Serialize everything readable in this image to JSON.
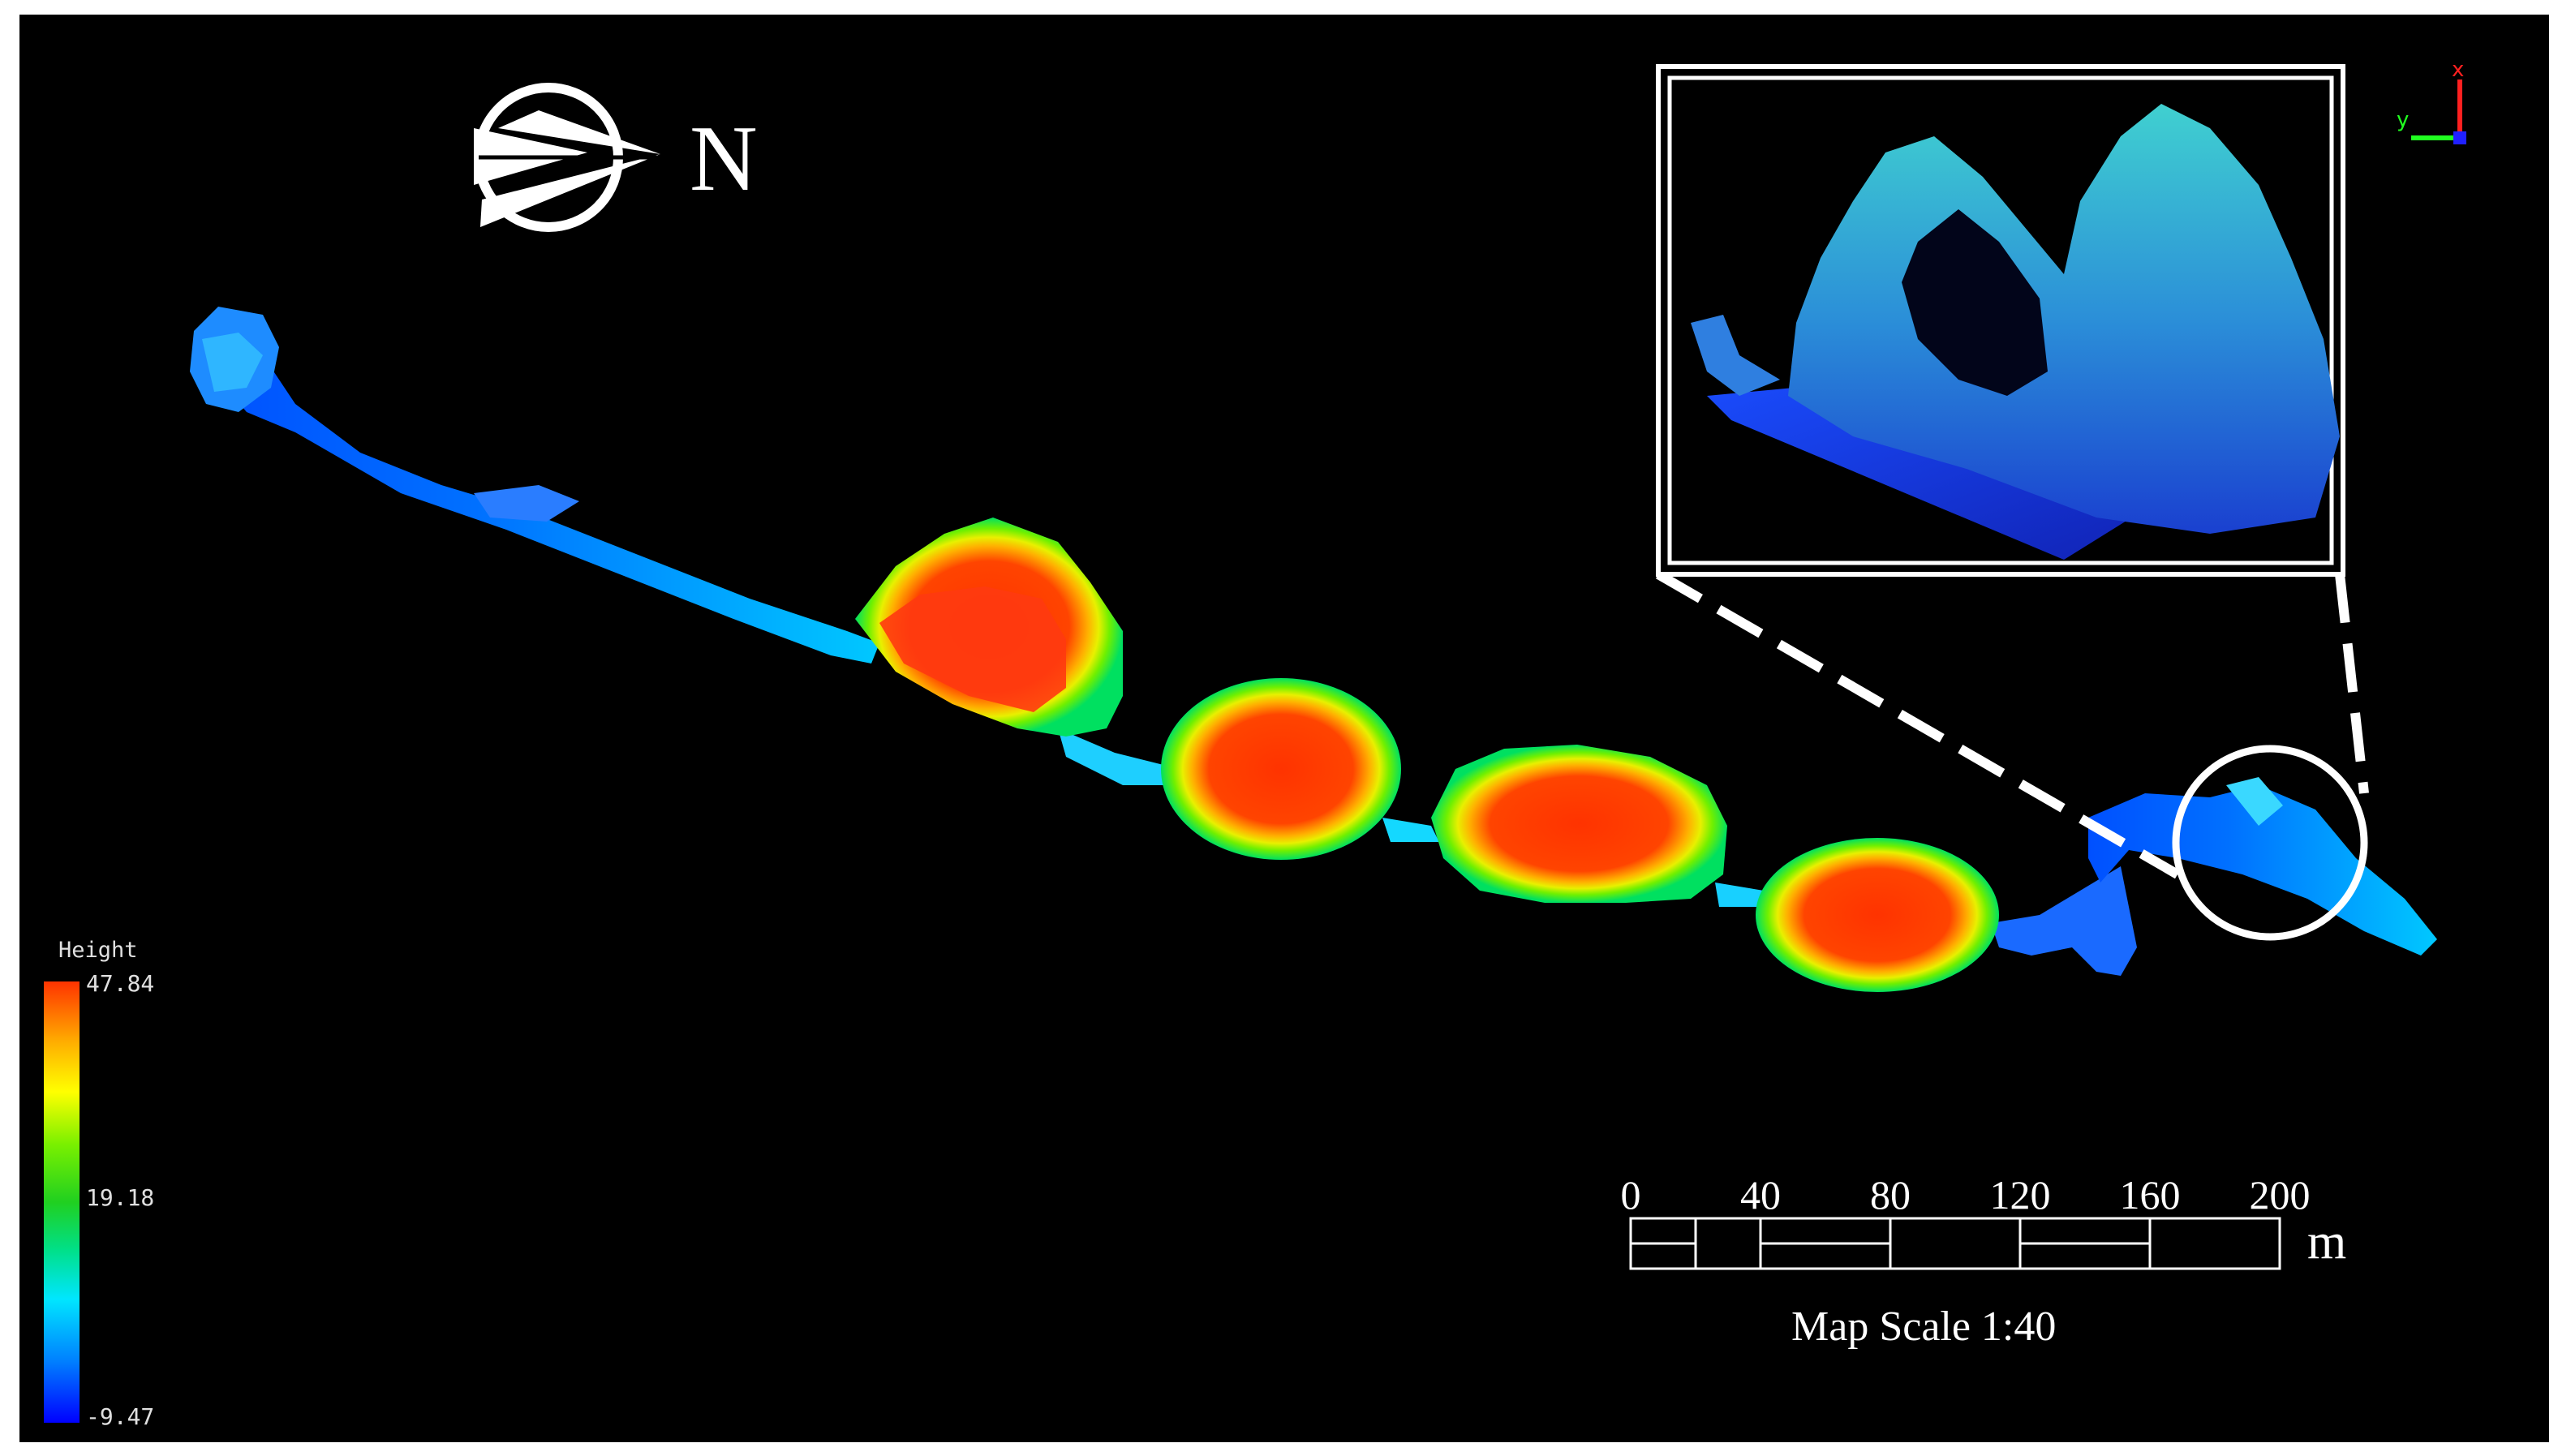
{
  "north_arrow": {
    "label": "N",
    "icon": "north-arrow-icon"
  },
  "legend": {
    "title": "Height",
    "max": "47.84",
    "mid": "19.18",
    "min": "-9.47",
    "colors": [
      "#ff3300",
      "#ffff00",
      "#20d020",
      "#00e6ff",
      "#0000ff"
    ]
  },
  "scale_bar": {
    "ticks": [
      "0",
      "40",
      "80",
      "120",
      "160",
      "200"
    ],
    "unit": "m",
    "caption": "Map Scale  1:40"
  },
  "axis_gizmo": {
    "x_label": "x",
    "y_label": "y"
  },
  "inset": {
    "description_icon": "cave-3d-detail-view"
  },
  "colors": {
    "background": "#000000",
    "frame": "#ffffff",
    "highest": "#ff3300",
    "lowest": "#0000ff"
  }
}
